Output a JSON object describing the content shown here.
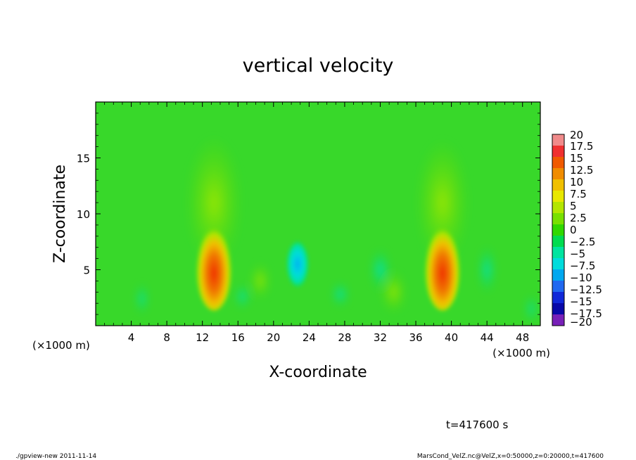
{
  "chart_data": {
    "type": "heatmap",
    "title": "vertical velocity",
    "xlabel": "X-coordinate",
    "ylabel": "Z-coordinate",
    "x_unit_left": "(×1000 m)",
    "x_unit_right": "(×1000 m)",
    "xlim": [
      0,
      50
    ],
    "ylim": [
      0,
      20
    ],
    "x_ticks": [
      4,
      8,
      12,
      16,
      20,
      24,
      28,
      32,
      36,
      40,
      44,
      48
    ],
    "y_ticks": [
      5,
      10,
      15
    ],
    "colorbar_levels": [
      20,
      17.5,
      15,
      12.5,
      10,
      7.5,
      5,
      2.5,
      0,
      -2.5,
      -5,
      -7.5,
      -10,
      -12.5,
      -15,
      -17.5,
      -20
    ],
    "colorbar_colors": [
      "#f08a8a",
      "#f03030",
      "#f05a00",
      "#f08c00",
      "#f0c000",
      "#e8e800",
      "#b4e600",
      "#78e000",
      "#30d800",
      "#00dc50",
      "#00e4a0",
      "#00dcdc",
      "#00a8f0",
      "#2068f0",
      "#1028d8",
      "#0808a8",
      "#7820b8"
    ],
    "features": [
      {
        "kind": "updraft",
        "x_center": 13.3,
        "z_center": 5.5,
        "peak_value": 15
      },
      {
        "kind": "downdraft",
        "x_center": 22.7,
        "z_center": 5.5,
        "peak_value": -7.5
      },
      {
        "kind": "updraft",
        "x_center": 39.0,
        "z_center": 5.5,
        "peak_value": 15
      }
    ],
    "time_label": "t=417600 s"
  },
  "footer": {
    "left": "./gpview-new  2011-11-14",
    "right": "MarsCond_VelZ.nc@VelZ,x=0:50000,z=0:20000,t=417600"
  }
}
